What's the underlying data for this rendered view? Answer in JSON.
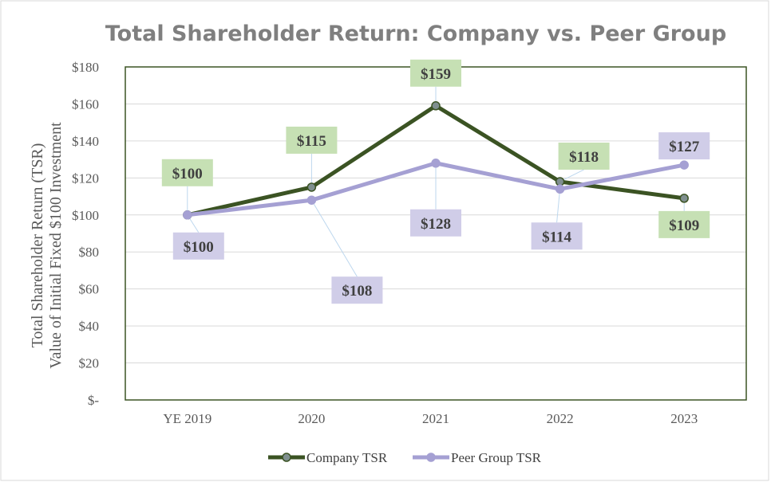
{
  "chart_data": {
    "type": "line",
    "title": "Total Shareholder Return: Company vs. Peer Group",
    "ylabel_line1": "Total Shareholder Return (TSR)",
    "ylabel_line2": "Value of Initial Fixed $100 Investment",
    "xlabel": "",
    "categories": [
      "YE 2019",
      "2020",
      "2021",
      "2022",
      "2023"
    ],
    "ylim": [
      0,
      180
    ],
    "ytick_values": [
      0,
      20,
      40,
      60,
      80,
      100,
      120,
      140,
      160,
      180
    ],
    "ytick_labels": [
      "$-",
      "$20",
      "$40",
      "$60",
      "$80",
      "$100",
      "$120",
      "$140",
      "$160",
      "$180"
    ],
    "grid": true,
    "legend_position": "bottom",
    "series": [
      {
        "name": "Company TSR",
        "values": [
          100,
          115,
          159,
          118,
          109
        ],
        "labels": [
          "$100",
          "$115",
          "$159",
          "$118",
          "$109"
        ],
        "color": "#3b5323",
        "marker_color": "#7f8f8f",
        "label_bg": "#c6e0b4"
      },
      {
        "name": "Peer Group TSR",
        "values": [
          100,
          108,
          128,
          114,
          127
        ],
        "labels": [
          "$100",
          "$108",
          "$128",
          "$114",
          "$127"
        ],
        "color": "#a5a0d3",
        "marker_color": "#a5a0d3",
        "label_bg": "#d0cde8"
      }
    ]
  }
}
